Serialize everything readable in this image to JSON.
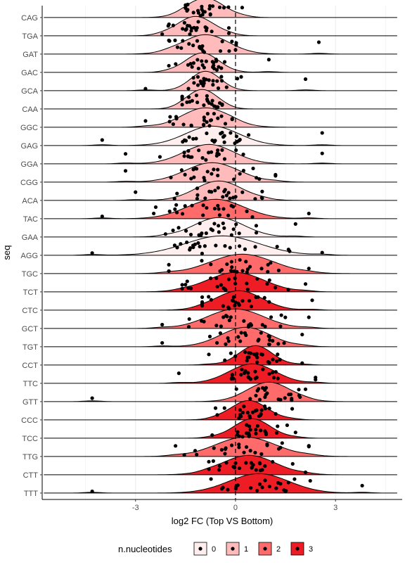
{
  "chart_data": {
    "type": "ridgeline",
    "xlabel": "log2 FC (Top VS Bottom)",
    "ylabel": "seq",
    "xlim": [
      -5.8,
      5.0
    ],
    "x_ticks": [
      -3,
      0,
      3
    ],
    "x_tick_labels": [
      "-3",
      "0",
      "3"
    ],
    "reference_line_x": 0,
    "grid": "vertical",
    "legend": {
      "title": "n.nucleotides",
      "position": "bottom",
      "entries": [
        {
          "label": "0",
          "color": "#FFEEEE"
        },
        {
          "label": "1",
          "color": "#FFBBBB"
        },
        {
          "label": "2",
          "color": "#FF6B6B"
        },
        {
          "label": "3",
          "color": "#EE1C24"
        }
      ]
    },
    "categories": [
      "CAG",
      "TGA",
      "GAT",
      "GAC",
      "GCA",
      "CAA",
      "GGC",
      "GAG",
      "GGA",
      "CGG",
      "ACA",
      "TAC",
      "GAA",
      "AGG",
      "TGC",
      "TCT",
      "CTC",
      "GCT",
      "TGT",
      "CCT",
      "TTC",
      "GTT",
      "CCC",
      "TCC",
      "TTG",
      "CTT",
      "TTT"
    ],
    "series": [
      {
        "seq": "CAG",
        "n": 1,
        "center": -0.9,
        "sd": 0.55,
        "range": [
          -1.5,
          0.2
        ]
      },
      {
        "seq": "TGA",
        "n": 1,
        "center": -1.2,
        "sd": 0.55,
        "range": [
          -2.2,
          -0.2
        ]
      },
      {
        "seq": "GAT",
        "n": 1,
        "center": -0.9,
        "sd": 0.7,
        "range": [
          -2.0,
          2.5
        ]
      },
      {
        "seq": "GAC",
        "n": 1,
        "center": -1.0,
        "sd": 0.5,
        "range": [
          -2.0,
          1.0
        ]
      },
      {
        "seq": "GCA",
        "n": 1,
        "center": -0.9,
        "sd": 0.45,
        "range": [
          -2.7,
          2.1
        ]
      },
      {
        "seq": "CAA",
        "n": 1,
        "center": -1.0,
        "sd": 0.45,
        "range": [
          -1.6,
          -0.4
        ]
      },
      {
        "seq": "GGC",
        "n": 1,
        "center": -0.9,
        "sd": 0.7,
        "range": [
          -2.7,
          -0.1
        ]
      },
      {
        "seq": "GAG",
        "n": 0,
        "center": -0.7,
        "sd": 0.8,
        "range": [
          -4.0,
          2.6
        ]
      },
      {
        "seq": "GGA",
        "n": 1,
        "center": -0.8,
        "sd": 0.75,
        "range": [
          -3.3,
          2.6
        ]
      },
      {
        "seq": "CGG",
        "n": 1,
        "center": -0.7,
        "sd": 0.8,
        "range": [
          -3.3,
          1.2
        ]
      },
      {
        "seq": "ACA",
        "n": 1,
        "center": -0.5,
        "sd": 0.7,
        "range": [
          -3.0,
          0.8
        ]
      },
      {
        "seq": "TAC",
        "n": 2,
        "center": -0.6,
        "sd": 0.85,
        "range": [
          -4.0,
          2.2
        ]
      },
      {
        "seq": "GAA",
        "n": 0,
        "center": -0.5,
        "sd": 0.75,
        "range": [
          -2.1,
          1.8
        ]
      },
      {
        "seq": "AGG",
        "n": 0,
        "center": -0.4,
        "sd": 1.1,
        "range": [
          -4.3,
          2.6
        ]
      },
      {
        "seq": "TGC",
        "n": 2,
        "center": 0.2,
        "sd": 0.95,
        "range": [
          -2.0,
          2.2
        ]
      },
      {
        "seq": "TCT",
        "n": 3,
        "center": 0.0,
        "sd": 0.85,
        "range": [
          -1.6,
          2.1
        ]
      },
      {
        "seq": "CTC",
        "n": 3,
        "center": 0.1,
        "sd": 0.7,
        "range": [
          -1.0,
          2.3
        ]
      },
      {
        "seq": "GCT",
        "n": 2,
        "center": 0.0,
        "sd": 0.85,
        "range": [
          -2.2,
          2.2
        ]
      },
      {
        "seq": "TGT",
        "n": 2,
        "center": 0.3,
        "sd": 0.75,
        "range": [
          -2.2,
          2.0
        ]
      },
      {
        "seq": "CCT",
        "n": 3,
        "center": 0.6,
        "sd": 0.5,
        "range": [
          -0.8,
          2.0
        ]
      },
      {
        "seq": "TTC",
        "n": 3,
        "center": 0.5,
        "sd": 0.7,
        "range": [
          -1.7,
          2.4
        ]
      },
      {
        "seq": "GTT",
        "n": 2,
        "center": 1.0,
        "sd": 0.65,
        "range": [
          -4.3,
          2.1
        ]
      },
      {
        "seq": "CCC",
        "n": 3,
        "center": 0.4,
        "sd": 0.55,
        "range": [
          -0.6,
          1.7
        ]
      },
      {
        "seq": "TCC",
        "n": 3,
        "center": 0.5,
        "sd": 0.55,
        "range": [
          -0.7,
          1.8
        ]
      },
      {
        "seq": "TTG",
        "n": 2,
        "center": 0.3,
        "sd": 0.9,
        "range": [
          -1.8,
          2.2
        ]
      },
      {
        "seq": "CTT",
        "n": 3,
        "center": 0.4,
        "sd": 0.8,
        "range": [
          -0.8,
          2.1
        ]
      },
      {
        "seq": "TTT",
        "n": 3,
        "center": 0.7,
        "sd": 0.9,
        "range": [
          -4.3,
          3.8
        ]
      }
    ]
  }
}
